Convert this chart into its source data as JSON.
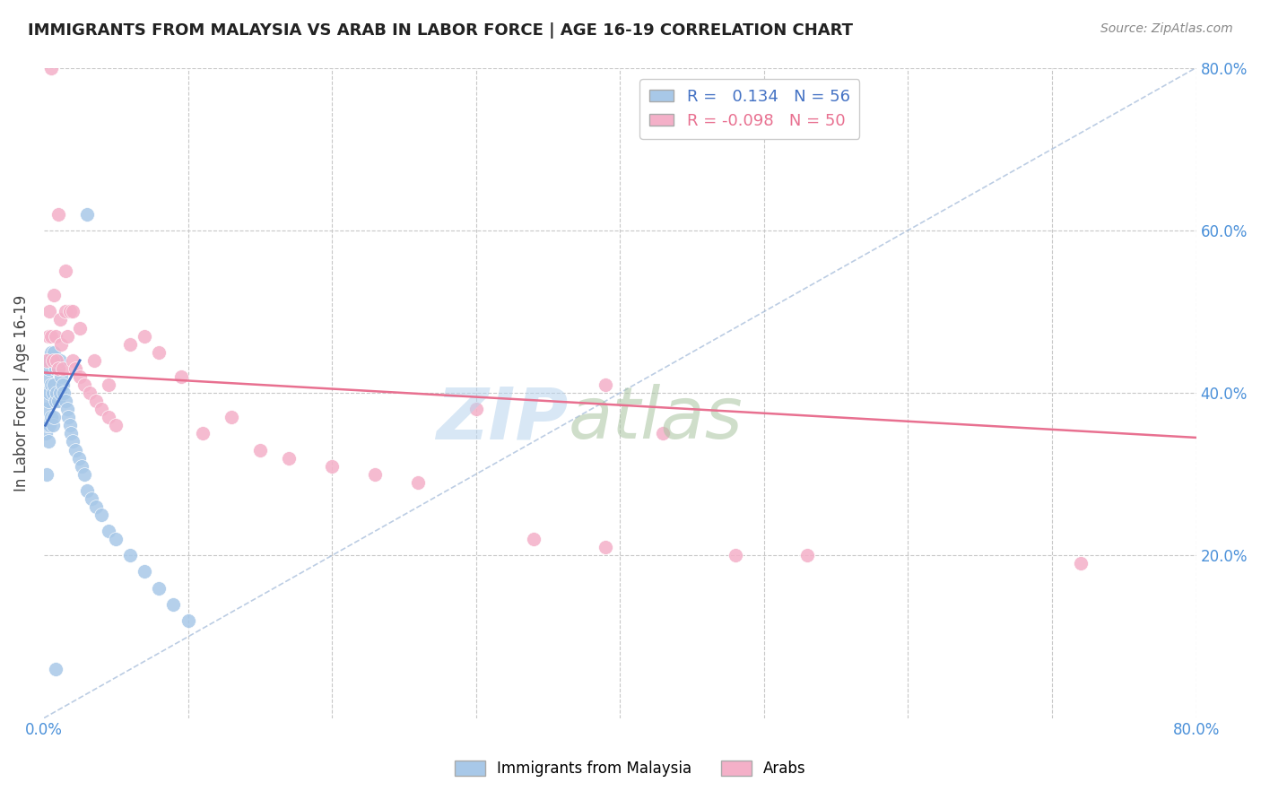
{
  "title": "IMMIGRANTS FROM MALAYSIA VS ARAB IN LABOR FORCE | AGE 16-19 CORRELATION CHART",
  "source": "Source: ZipAtlas.com",
  "ylabel": "In Labor Force | Age 16-19",
  "xlim": [
    0.0,
    0.8
  ],
  "ylim": [
    0.0,
    0.8
  ],
  "malaysia_R": 0.134,
  "malaysia_N": 56,
  "arab_R": -0.098,
  "arab_N": 50,
  "malaysia_scatter_color": "#a8c8e8",
  "arab_scatter_color": "#f4b0c8",
  "malaysia_line_color": "#4472c4",
  "arab_line_color": "#e87090",
  "diag_line_color": "#a0b8d8",
  "background_color": "#ffffff",
  "grid_color": "#c8c8c8",
  "malaysia_x": [
    0.001,
    0.001,
    0.001,
    0.002,
    0.002,
    0.002,
    0.002,
    0.003,
    0.003,
    0.003,
    0.004,
    0.004,
    0.004,
    0.005,
    0.005,
    0.005,
    0.006,
    0.006,
    0.006,
    0.007,
    0.007,
    0.007,
    0.008,
    0.008,
    0.009,
    0.009,
    0.01,
    0.01,
    0.011,
    0.011,
    0.012,
    0.013,
    0.014,
    0.015,
    0.016,
    0.017,
    0.018,
    0.019,
    0.02,
    0.022,
    0.024,
    0.026,
    0.028,
    0.03,
    0.033,
    0.036,
    0.04,
    0.045,
    0.05,
    0.06,
    0.07,
    0.08,
    0.09,
    0.1,
    0.03,
    0.008
  ],
  "malaysia_y": [
    0.42,
    0.38,
    0.35,
    0.44,
    0.4,
    0.36,
    0.3,
    0.43,
    0.39,
    0.34,
    0.44,
    0.4,
    0.36,
    0.45,
    0.41,
    0.37,
    0.44,
    0.4,
    0.36,
    0.45,
    0.41,
    0.37,
    0.43,
    0.39,
    0.44,
    0.4,
    0.43,
    0.39,
    0.44,
    0.4,
    0.42,
    0.41,
    0.4,
    0.39,
    0.38,
    0.37,
    0.36,
    0.35,
    0.34,
    0.33,
    0.32,
    0.31,
    0.3,
    0.28,
    0.27,
    0.26,
    0.25,
    0.23,
    0.22,
    0.2,
    0.18,
    0.16,
    0.14,
    0.12,
    0.62,
    0.06
  ],
  "arab_x": [
    0.002,
    0.003,
    0.004,
    0.005,
    0.006,
    0.007,
    0.008,
    0.009,
    0.01,
    0.011,
    0.012,
    0.013,
    0.015,
    0.016,
    0.018,
    0.02,
    0.022,
    0.025,
    0.028,
    0.032,
    0.036,
    0.04,
    0.045,
    0.05,
    0.06,
    0.07,
    0.08,
    0.095,
    0.11,
    0.13,
    0.15,
    0.17,
    0.2,
    0.23,
    0.26,
    0.3,
    0.34,
    0.39,
    0.43,
    0.48,
    0.39,
    0.53,
    0.01,
    0.015,
    0.02,
    0.025,
    0.035,
    0.045,
    0.72,
    0.005
  ],
  "arab_y": [
    0.44,
    0.47,
    0.5,
    0.47,
    0.44,
    0.52,
    0.47,
    0.44,
    0.43,
    0.49,
    0.46,
    0.43,
    0.5,
    0.47,
    0.5,
    0.44,
    0.43,
    0.42,
    0.41,
    0.4,
    0.39,
    0.38,
    0.37,
    0.36,
    0.46,
    0.47,
    0.45,
    0.42,
    0.35,
    0.37,
    0.33,
    0.32,
    0.31,
    0.3,
    0.29,
    0.38,
    0.22,
    0.21,
    0.35,
    0.2,
    0.41,
    0.2,
    0.62,
    0.55,
    0.5,
    0.48,
    0.44,
    0.41,
    0.19,
    0.8
  ],
  "malaysia_line_x0": 0.001,
  "malaysia_line_x1": 0.025,
  "malaysia_line_y0": 0.36,
  "malaysia_line_y1": 0.44,
  "arab_line_x0": 0.0,
  "arab_line_x1": 0.8,
  "arab_line_y0": 0.425,
  "arab_line_y1": 0.345,
  "diag_line_x0": 0.0,
  "diag_line_x1": 0.8,
  "diag_line_y0": 0.0,
  "diag_line_y1": 0.8
}
